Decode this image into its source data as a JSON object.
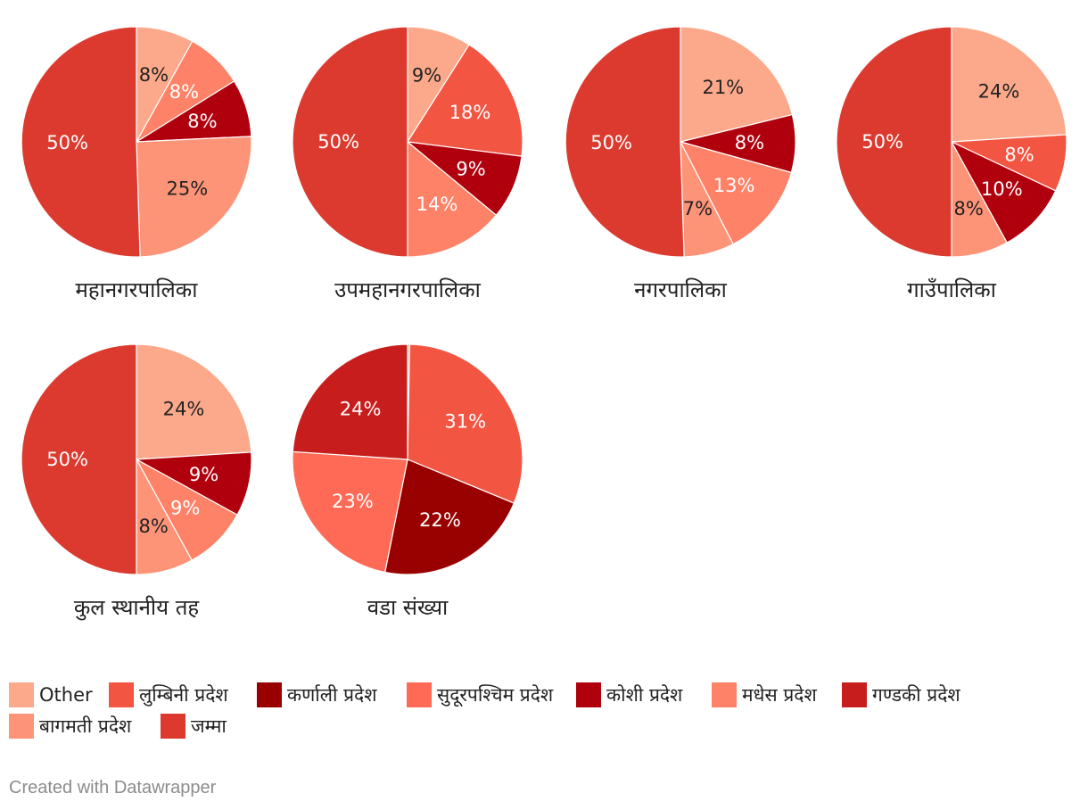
{
  "chart_data": {
    "type": "pie",
    "legend_position": "bottom",
    "legend": [
      {
        "name": "Other",
        "color": "#fca98b"
      },
      {
        "name": "लुम्बिनी प्रदेश",
        "color": "#f35543"
      },
      {
        "name": "कर्णाली प्रदेश",
        "color": "#990000"
      },
      {
        "name": "सुदूरपश्चिम प्रदेश",
        "color": "#ff6a56"
      },
      {
        "name": "कोशी प्रदेश",
        "color": "#b0000e"
      },
      {
        "name": "मधेस प्रदेश",
        "color": "#fd8268"
      },
      {
        "name": "गण्डकी प्रदेश",
        "color": "#c71e1d"
      },
      {
        "name": "बागमती प्रदेश",
        "color": "#fd9478"
      },
      {
        "name": "जम्मा",
        "color": "#dd3a2f"
      }
    ],
    "charts": [
      {
        "title": "महानगरपालिका",
        "slices": [
          {
            "name": "Other",
            "value": 8,
            "label": "8%"
          },
          {
            "name": "मधेस प्रदेश",
            "value": 8,
            "label": "8%"
          },
          {
            "name": "कोशी प्रदेश",
            "value": 8,
            "label": "8%"
          },
          {
            "name": "बागमती प्रदेश",
            "value": 25,
            "label": "25%"
          },
          {
            "name": "जम्मा",
            "value": 50,
            "label": "50%"
          }
        ]
      },
      {
        "title": "उपमहानगरपालिका",
        "slices": [
          {
            "name": "Other",
            "value": 9,
            "label": "9%"
          },
          {
            "name": "लुम्बिनी प्रदेश",
            "value": 18,
            "label": "18%"
          },
          {
            "name": "कोशी प्रदेश",
            "value": 9,
            "label": "9%"
          },
          {
            "name": "मधेस प्रदेश",
            "value": 14,
            "label": "14%"
          },
          {
            "name": "जम्मा",
            "value": 50,
            "label": "50%"
          }
        ]
      },
      {
        "title": "नगरपालिका",
        "slices": [
          {
            "name": "Other",
            "value": 21,
            "label": "21%"
          },
          {
            "name": "कोशी प्रदेश",
            "value": 8,
            "label": "8%"
          },
          {
            "name": "मधेस प्रदेश",
            "value": 13,
            "label": "13%"
          },
          {
            "name": "बागमती प्रदेश",
            "value": 7,
            "label": "7%"
          },
          {
            "name": "जम्मा",
            "value": 50,
            "label": "50%"
          }
        ]
      },
      {
        "title": "गाउँपालिका",
        "slices": [
          {
            "name": "Other",
            "value": 24,
            "label": "24%"
          },
          {
            "name": "लुम्बिनी प्रदेश",
            "value": 8,
            "label": "8%"
          },
          {
            "name": "कोशी प्रदेश",
            "value": 10,
            "label": "10%"
          },
          {
            "name": "बागमती प्रदेश",
            "value": 8,
            "label": "8%"
          },
          {
            "name": "जम्मा",
            "value": 50,
            "label": "50%"
          }
        ]
      },
      {
        "title": "कुल स्थानीय तह",
        "slices": [
          {
            "name": "Other",
            "value": 24,
            "label": "24%"
          },
          {
            "name": "कोशी प्रदेश",
            "value": 9,
            "label": "9%"
          },
          {
            "name": "मधेस प्रदेश",
            "value": 9,
            "label": "9%"
          },
          {
            "name": "बागमती प्रदेश",
            "value": 8,
            "label": "8%"
          },
          {
            "name": "जम्मा",
            "value": 50,
            "label": "50%"
          }
        ]
      },
      {
        "title": "वडा संख्या",
        "slices": [
          {
            "name": "Other",
            "value": 0.3,
            "label": ""
          },
          {
            "name": "लुम्बिनी प्रदेश",
            "value": 31,
            "label": "31%"
          },
          {
            "name": "कर्णाली प्रदेश",
            "value": 22,
            "label": "22%"
          },
          {
            "name": "सुदूरपश्चिम प्रदेश",
            "value": 23,
            "label": "23%"
          },
          {
            "name": "गण्डकी प्रदेश",
            "value": 24,
            "label": "24%"
          }
        ]
      }
    ]
  },
  "credit": "Created with Datawrapper"
}
